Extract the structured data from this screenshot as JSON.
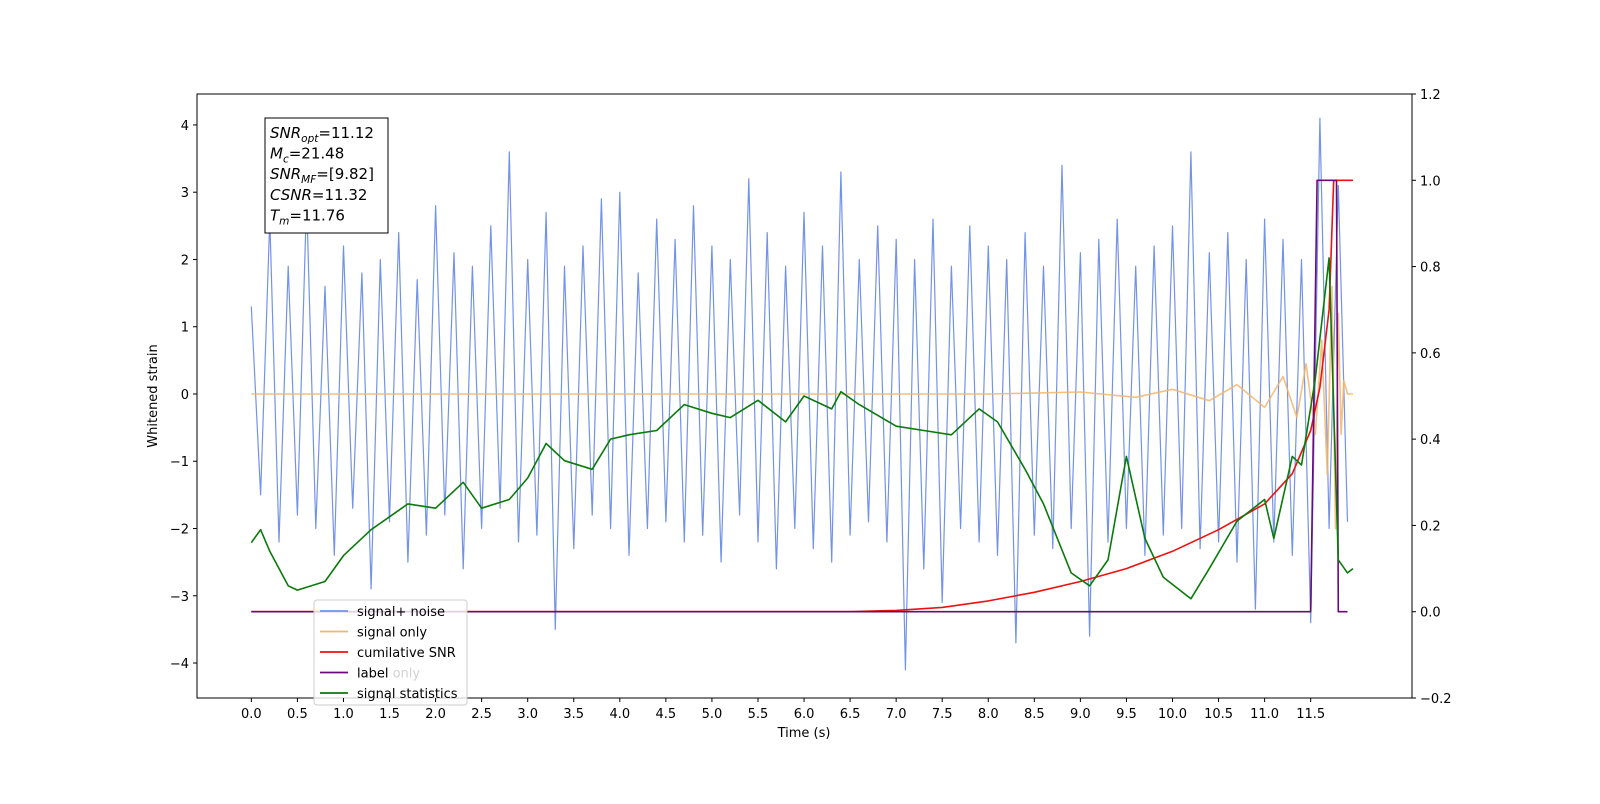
{
  "chart_data": {
    "type": "line",
    "xlabel": "Time (s)",
    "ylabel": "Whitened strain",
    "xlim": [
      -0.59,
      12.6
    ],
    "ylim": [
      -4.52,
      4.46
    ],
    "y2lim": [
      -0.2,
      1.2
    ],
    "xticks": [
      {
        "value": 0,
        "label": "0.0"
      },
      0.5,
      {
        "value": 1,
        "label": "1.0"
      },
      1.5,
      {
        "value": 2,
        "label": "2.0"
      },
      2.5,
      {
        "value": 3,
        "label": "3.0"
      },
      3.5,
      {
        "value": 4,
        "label": "4.0"
      },
      4.5,
      {
        "value": 5,
        "label": "5.0"
      },
      5.5,
      {
        "value": 6,
        "label": "6.0"
      },
      6.5,
      {
        "value": 7,
        "label": "7.0"
      },
      7.5,
      {
        "value": 8,
        "label": "8.0"
      },
      8.5,
      {
        "value": 9,
        "label": "9.0"
      },
      9.5,
      {
        "value": 10,
        "label": "10.0"
      },
      10.5,
      {
        "value": 11,
        "label": "11.0"
      },
      11.5
    ],
    "yticks": [
      {
        "value": -4,
        "label": "−4"
      },
      {
        "value": -3,
        "label": "−3"
      },
      {
        "value": -2,
        "label": "−2"
      },
      {
        "value": -1,
        "label": "−1"
      },
      0,
      1,
      2,
      3,
      4
    ],
    "y2ticks": [
      {
        "value": -0.2,
        "label": "−0.2"
      },
      {
        "value": 0,
        "label": "0.0"
      },
      0.2,
      0.4,
      0.6,
      0.8,
      {
        "value": 1,
        "label": "1.0"
      },
      1.2
    ],
    "annotation": [
      {
        "symbol": "SNR",
        "subscript": "opt",
        "text": "=11.12"
      },
      {
        "symbol": "M",
        "subscript": "c",
        "text": "=21.48"
      },
      {
        "symbol": "SNR",
        "subscript": "MF",
        "text": "=[9.82]"
      },
      {
        "symbol": "CSNR",
        "text": "=11.32"
      },
      {
        "symbol": "T",
        "subscript": "m",
        "text": "=11.76"
      }
    ],
    "legend_ghost_text": "label only",
    "series": [
      {
        "name": "signal+ noise",
        "color": "#7393e6",
        "x": [
          0,
          0.1,
          0.2,
          0.3,
          0.4,
          0.5,
          0.6,
          0.7,
          0.8,
          0.9,
          1,
          1.1,
          1.2,
          1.3,
          1.4,
          1.5,
          1.6,
          1.7,
          1.8,
          1.9,
          2,
          2.1,
          2.2,
          2.3,
          2.4,
          2.5,
          2.6,
          2.7,
          2.8,
          2.9,
          3,
          3.1,
          3.2,
          3.3,
          3.4,
          3.5,
          3.6,
          3.7,
          3.8,
          3.9,
          4,
          4.1,
          4.2,
          4.3,
          4.4,
          4.5,
          4.6,
          4.7,
          4.8,
          4.9,
          5,
          5.1,
          5.2,
          5.3,
          5.4,
          5.5,
          5.6,
          5.7,
          5.8,
          5.9,
          6,
          6.1,
          6.2,
          6.3,
          6.4,
          6.5,
          6.6,
          6.7,
          6.8,
          6.9,
          7,
          7.1,
          7.2,
          7.3,
          7.4,
          7.5,
          7.6,
          7.7,
          7.8,
          7.9,
          8,
          8.1,
          8.2,
          8.3,
          8.4,
          8.5,
          8.6,
          8.7,
          8.8,
          8.9,
          9,
          9.1,
          9.2,
          9.3,
          9.4,
          9.5,
          9.6,
          9.7,
          9.8,
          9.9,
          10,
          10.1,
          10.2,
          10.3,
          10.4,
          10.5,
          10.6,
          10.7,
          10.8,
          10.9,
          11,
          11.1,
          11.2,
          11.3,
          11.4,
          11.5,
          11.6,
          11.7,
          11.8,
          11.9
        ],
        "values": [
          1.3,
          -1.5,
          2.6,
          -2.2,
          1.9,
          -1.8,
          2.9,
          -2.0,
          1.6,
          -2.4,
          2.2,
          -1.7,
          1.8,
          -2.9,
          2.0,
          -1.9,
          2.4,
          -2.5,
          1.7,
          -2.1,
          2.8,
          -1.8,
          2.1,
          -2.6,
          1.9,
          -2.0,
          2.5,
          -1.7,
          3.6,
          -2.2,
          2.0,
          -2.1,
          2.7,
          -3.5,
          1.9,
          -2.3,
          2.2,
          -1.8,
          2.9,
          -2.0,
          3.0,
          -2.4,
          1.8,
          -2.0,
          2.6,
          -1.9,
          2.3,
          -2.2,
          2.8,
          -2.1,
          2.2,
          -2.5,
          2.0,
          -1.8,
          3.2,
          -2.2,
          2.4,
          -2.6,
          1.9,
          -2.0,
          2.7,
          -2.3,
          2.2,
          -2.5,
          3.3,
          -2.1,
          2.0,
          -1.9,
          2.5,
          -2.2,
          2.3,
          -4.1,
          2.0,
          -2.6,
          2.6,
          -3.1,
          1.9,
          -2.0,
          2.5,
          -2.2,
          2.2,
          -2.4,
          2.0,
          -3.7,
          2.4,
          -2.1,
          1.9,
          -2.3,
          3.4,
          -2.0,
          2.1,
          -3.6,
          2.3,
          -2.2,
          2.6,
          -2.0,
          1.9,
          -2.4,
          2.2,
          -2.1,
          2.5,
          -2.0,
          3.6,
          -2.3,
          2.1,
          -2.2,
          2.4,
          -2.5,
          2.0,
          -3.2,
          2.6,
          -2.2,
          2.3,
          -2.4,
          2.0,
          -3.4,
          4.1,
          -2.0,
          3.1,
          -1.9
        ]
      },
      {
        "name": "signal only",
        "color": "#f2b56b",
        "x": [
          0,
          8.0,
          9.0,
          9.6,
          10.0,
          10.4,
          10.7,
          11.0,
          11.2,
          11.35,
          11.45,
          11.55,
          11.62,
          11.68,
          11.73,
          11.77,
          11.8,
          11.83,
          11.86,
          11.9,
          11.96
        ],
        "values": [
          0,
          0,
          0.03,
          -0.05,
          0.07,
          -0.1,
          0.14,
          -0.2,
          0.26,
          -0.35,
          0.45,
          -0.6,
          0.8,
          -1.2,
          1.6,
          -2.0,
          1.2,
          -0.6,
          0.2,
          0,
          0
        ]
      },
      {
        "name": "cumilative SNR",
        "color": "#ee1111",
        "axis": "y2",
        "x": [
          0,
          6.5,
          7.0,
          7.5,
          8.0,
          8.5,
          9.0,
          9.5,
          10.0,
          10.5,
          11.0,
          11.3,
          11.5,
          11.6,
          11.7,
          11.75,
          11.96
        ],
        "values": [
          0,
          0,
          0.003,
          0.01,
          0.025,
          0.045,
          0.07,
          0.1,
          0.14,
          0.19,
          0.25,
          0.32,
          0.42,
          0.52,
          0.7,
          1.0,
          1.0
        ]
      },
      {
        "name": "label",
        "color": "#6a0a7a",
        "axis": "y2",
        "x": [
          0,
          11.5,
          11.57,
          11.78,
          11.8,
          11.9
        ],
        "values": [
          0,
          0,
          1,
          1,
          0,
          0
        ]
      },
      {
        "name": "signal statistics",
        "color": "#0a7a0a",
        "axis": "y2",
        "x": [
          0,
          0.1,
          0.2,
          0.4,
          0.5,
          0.8,
          1.0,
          1.3,
          1.5,
          1.7,
          2.0,
          2.2,
          2.3,
          2.5,
          2.8,
          3.0,
          3.2,
          3.4,
          3.7,
          3.9,
          4.1,
          4.4,
          4.7,
          5.0,
          5.2,
          5.5,
          5.8,
          6.0,
          6.3,
          6.4,
          6.6,
          7.0,
          7.3,
          7.6,
          7.9,
          8.1,
          8.4,
          8.6,
          8.9,
          9.1,
          9.3,
          9.5,
          9.7,
          9.9,
          10.2,
          10.4,
          10.7,
          11.0,
          11.1,
          11.3,
          11.4,
          11.55,
          11.7,
          11.8,
          11.9,
          11.96
        ],
        "values": [
          0.16,
          0.19,
          0.14,
          0.06,
          0.05,
          0.07,
          0.13,
          0.19,
          0.22,
          0.25,
          0.24,
          0.28,
          0.3,
          0.24,
          0.26,
          0.31,
          0.39,
          0.35,
          0.33,
          0.4,
          0.41,
          0.42,
          0.48,
          0.46,
          0.45,
          0.49,
          0.44,
          0.5,
          0.47,
          0.51,
          0.48,
          0.43,
          0.42,
          0.41,
          0.47,
          0.44,
          0.33,
          0.25,
          0.09,
          0.06,
          0.12,
          0.36,
          0.17,
          0.08,
          0.03,
          0.1,
          0.21,
          0.26,
          0.17,
          0.36,
          0.34,
          0.54,
          0.82,
          0.12,
          0.09,
          0.1
        ]
      }
    ]
  }
}
